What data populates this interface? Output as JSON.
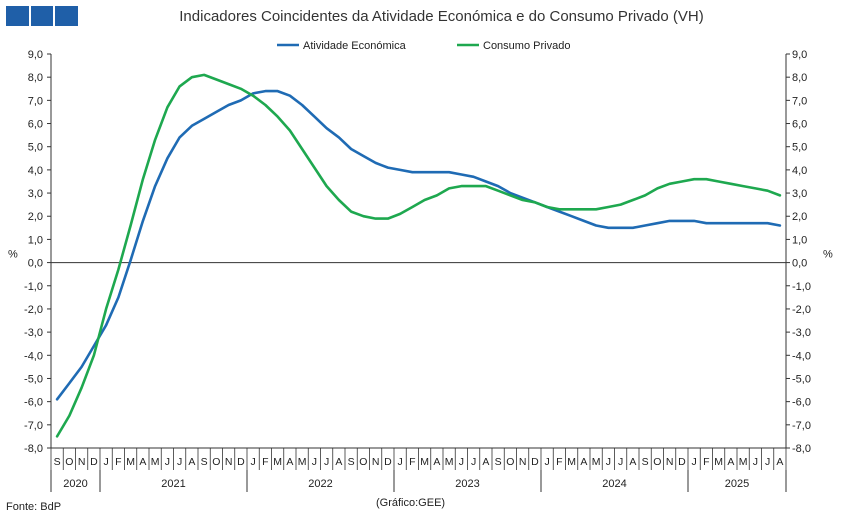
{
  "chart_data": {
    "type": "line",
    "title": "Indicadores Coincidentes da Atividade Económica e do Consumo Privado (VH)",
    "ylabel_left": "%",
    "ylabel_right": "%",
    "ylim": [
      -8,
      9
    ],
    "yticks": [
      "9,0",
      "8,0",
      "7,0",
      "6,0",
      "5,0",
      "4,0",
      "3,0",
      "2,0",
      "1,0",
      "0,0",
      "-1,0",
      "-2,0",
      "-3,0",
      "-4,0",
      "-5,0",
      "-6,0",
      "-7,0",
      "-8,0"
    ],
    "months": [
      "S",
      "O",
      "N",
      "D",
      "J",
      "F",
      "M",
      "A",
      "M",
      "J",
      "J",
      "A",
      "S",
      "O",
      "N",
      "D",
      "J",
      "F",
      "M",
      "A",
      "M",
      "J",
      "J",
      "A",
      "S",
      "O",
      "N",
      "D",
      "J",
      "F",
      "M",
      "A",
      "M",
      "J",
      "J",
      "A",
      "S",
      "O",
      "N",
      "D",
      "J",
      "F",
      "M",
      "A",
      "M",
      "J",
      "J",
      "A",
      "S",
      "O",
      "N",
      "D",
      "J",
      "F",
      "M",
      "A",
      "M",
      "J",
      "J",
      "A"
    ],
    "years": [
      {
        "label": "2020",
        "start": 0,
        "end": 4
      },
      {
        "label": "2021",
        "start": 4,
        "end": 16
      },
      {
        "label": "2022",
        "start": 16,
        "end": 28
      },
      {
        "label": "2023",
        "start": 28,
        "end": 40
      },
      {
        "label": "2024",
        "start": 40,
        "end": 52
      },
      {
        "label": "2025",
        "start": 52,
        "end": 60
      }
    ],
    "legend_position": "top",
    "series": [
      {
        "name": "Atividade Económica",
        "color": "#1f6bb4",
        "values": [
          -5.9,
          -5.2,
          -4.5,
          -3.6,
          -2.7,
          -1.5,
          0.1,
          1.8,
          3.3,
          4.5,
          5.4,
          5.9,
          6.2,
          6.5,
          6.8,
          7.0,
          7.3,
          7.4,
          7.4,
          7.2,
          6.8,
          6.3,
          5.8,
          5.4,
          4.9,
          4.6,
          4.3,
          4.1,
          4.0,
          3.9,
          3.9,
          3.9,
          3.9,
          3.8,
          3.7,
          3.5,
          3.3,
          3.0,
          2.8,
          2.6,
          2.4,
          2.2,
          2.0,
          1.8,
          1.6,
          1.5,
          1.5,
          1.5,
          1.6,
          1.7,
          1.8,
          1.8,
          1.8,
          1.7,
          1.7,
          1.7,
          1.7,
          1.7,
          1.7,
          1.6
        ]
      },
      {
        "name": "Consumo Privado",
        "color": "#1ea84f",
        "values": [
          -7.5,
          -6.6,
          -5.4,
          -4.0,
          -2.0,
          -0.3,
          1.6,
          3.6,
          5.3,
          6.7,
          7.6,
          8.0,
          8.1,
          7.9,
          7.7,
          7.5,
          7.2,
          6.8,
          6.3,
          5.7,
          4.9,
          4.1,
          3.3,
          2.7,
          2.2,
          2.0,
          1.9,
          1.9,
          2.1,
          2.4,
          2.7,
          2.9,
          3.2,
          3.3,
          3.3,
          3.3,
          3.1,
          2.9,
          2.7,
          2.6,
          2.4,
          2.3,
          2.3,
          2.3,
          2.3,
          2.4,
          2.5,
          2.7,
          2.9,
          3.2,
          3.4,
          3.5,
          3.6,
          3.6,
          3.5,
          3.4,
          3.3,
          3.2,
          3.1,
          2.9
        ]
      }
    ]
  },
  "footer": {
    "source": "Fonte: BdP",
    "credit": "(Gráfico:GEE)"
  },
  "colors": {
    "logo": "#1f5fa8",
    "axis": "#333333"
  }
}
